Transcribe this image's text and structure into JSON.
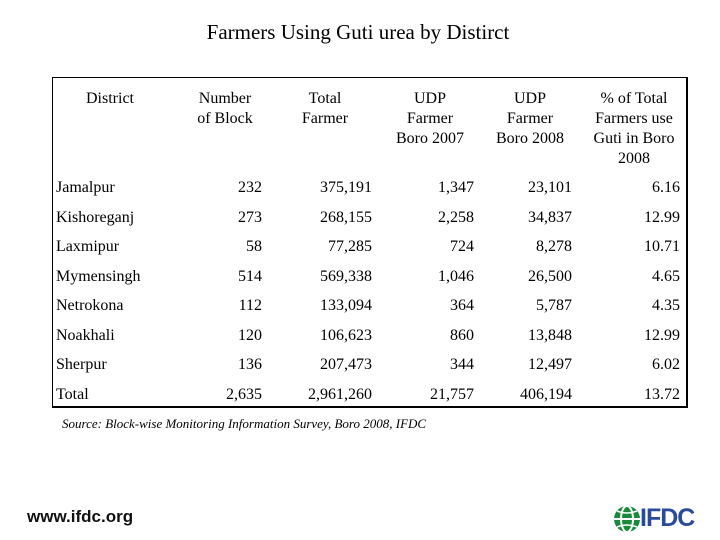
{
  "title": "Farmers Using Guti urea by Distirct",
  "table": {
    "headers": [
      "District",
      "Number\nof Block",
      "Total\nFarmer",
      "UDP\nFarmer\nBoro 2007",
      "UDP\nFarmer\nBoro 2008",
      "% of Total\nFarmers use\nGuti in Boro\n2008"
    ],
    "rows": [
      [
        "Jamalpur",
        "232",
        "375,191",
        "1,347",
        "23,101",
        "6.16"
      ],
      [
        "Kishoreganj",
        "273",
        "268,155",
        "2,258",
        "34,837",
        "12.99"
      ],
      [
        "Laxmipur",
        "58",
        "77,285",
        "724",
        "8,278",
        "10.71"
      ],
      [
        "Mymensingh",
        "514",
        "569,338",
        "1,046",
        "26,500",
        "4.65"
      ],
      [
        "Netrokona",
        "112",
        "133,094",
        "364",
        "5,787",
        "4.35"
      ],
      [
        "Noakhali",
        "120",
        "106,623",
        "860",
        "13,848",
        "12.99"
      ],
      [
        "Sherpur",
        "136",
        "207,473",
        "344",
        "12,497",
        "6.02"
      ],
      [
        "Total",
        "2,635",
        "2,961,260",
        "21,757",
        "406,194",
        "13.72"
      ]
    ]
  },
  "source": "Source:  Block-wise Monitoring Information Survey, Boro 2008, IFDC",
  "footer": {
    "url": "www.ifdc.org",
    "logo_text": "IFDC",
    "logo_icon": "globe-icon"
  },
  "colors": {
    "logo_blue": "#2a4a9a",
    "logo_green": "#1a8a3a"
  }
}
